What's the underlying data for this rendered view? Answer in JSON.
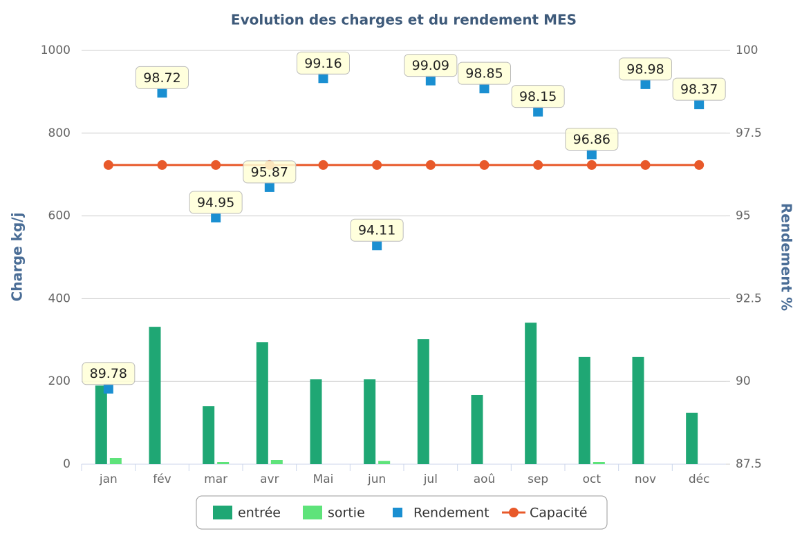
{
  "chart_data": {
    "type": "bar-line",
    "title": "Evolution des charges et du rendement MES",
    "y_label": "Charge kg/j",
    "y2_label": "Rendement %",
    "categories": [
      "jan",
      "fév",
      "mar",
      "avr",
      "Mai",
      "jun",
      "jul",
      "aoû",
      "sep",
      "oct",
      "nov",
      "déc"
    ],
    "ylim": [
      0,
      1000
    ],
    "yticks": [
      0,
      200,
      400,
      600,
      800,
      1000
    ],
    "y2lim": [
      87.5,
      100
    ],
    "y2ticks": [
      87.5,
      90,
      92.5,
      95,
      97.5,
      100
    ],
    "grid": true,
    "legend": "bottom",
    "series": [
      {
        "name": "entrée",
        "type": "bar",
        "color": "#1fa774",
        "values": [
          190,
          332,
          140,
          295,
          205,
          205,
          302,
          167,
          342,
          259,
          259,
          124
        ]
      },
      {
        "name": "sortie",
        "type": "bar",
        "color": "#5ee37a",
        "values": [
          15,
          0,
          5,
          10,
          0,
          8,
          0,
          0,
          0,
          5,
          0,
          0
        ]
      },
      {
        "name": "Rendement",
        "type": "marker",
        "axis": "y2",
        "color": "#1a8fd1",
        "values": [
          89.78,
          98.72,
          94.95,
          95.87,
          99.16,
          94.11,
          99.09,
          98.85,
          98.15,
          96.86,
          98.98,
          98.37
        ]
      },
      {
        "name": "Capacité",
        "type": "line",
        "color": "#e8592a",
        "values": [
          723,
          723,
          723,
          723,
          723,
          723,
          723,
          723,
          723,
          723,
          723,
          723
        ]
      }
    ]
  }
}
